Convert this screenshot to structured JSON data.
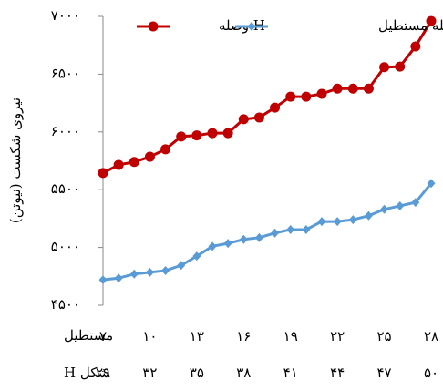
{
  "chart_data": {
    "type": "line",
    "ylabel": "نیروی شکست (نیوتن)",
    "x": [
      7,
      8,
      9,
      10,
      11,
      12,
      13,
      14,
      15,
      16,
      17,
      18,
      19,
      20,
      21,
      22,
      23,
      24,
      25,
      26,
      27,
      28
    ],
    "series": [
      {
        "name": "H وصله",
        "color": "#c00000",
        "marker": "circle",
        "values": [
          5645,
          5715,
          5740,
          5785,
          5850,
          5960,
          5970,
          5990,
          5990,
          6110,
          6125,
          6210,
          6305,
          6305,
          6330,
          6375,
          6375,
          6375,
          6560,
          6565,
          6740,
          6960
        ]
      },
      {
        "name": "وصله مستطیل",
        "color": "#5b9bd5",
        "marker": "diamond",
        "values": [
          4720,
          4735,
          4770,
          4785,
          4800,
          4845,
          4925,
          5010,
          5035,
          5070,
          5085,
          5125,
          5155,
          5155,
          5225,
          5225,
          5240,
          5275,
          5330,
          5360,
          5390,
          5555
        ]
      }
    ],
    "xlim": [
      7,
      28
    ],
    "xticks": [
      {
        "value": 7,
        "label": "۷"
      },
      {
        "value": 10,
        "label": "۱۰"
      },
      {
        "value": 13,
        "label": "۱۳"
      },
      {
        "value": 16,
        "label": "۱۶"
      },
      {
        "value": 19,
        "label": "۱۹"
      },
      {
        "value": 22,
        "label": "۲۲"
      },
      {
        "value": 25,
        "label": "۲۵"
      },
      {
        "value": 28,
        "label": "۲۸"
      }
    ],
    "xlabel": "مستطیل",
    "x2lim": [
      29,
      50
    ],
    "x2ticks": [
      {
        "value": 29,
        "label": "۲۹"
      },
      {
        "value": 32,
        "label": "۳۲"
      },
      {
        "value": 35,
        "label": "۳۵"
      },
      {
        "value": 38,
        "label": "۳۸"
      },
      {
        "value": 41,
        "label": "۴۱"
      },
      {
        "value": 44,
        "label": "۴۴"
      },
      {
        "value": 47,
        "label": "۴۷"
      },
      {
        "value": 50,
        "label": "۵۰"
      }
    ],
    "x2label": "شکل H",
    "ylim": [
      4500,
      7000
    ],
    "yticks": [
      {
        "value": 4500,
        "label": "۴۵۰۰"
      },
      {
        "value": 5000,
        "label": "۵۰۰۰"
      },
      {
        "value": 5500,
        "label": "۵۵۰۰"
      },
      {
        "value": 6000,
        "label": "۶۰۰۰"
      },
      {
        "value": 6500,
        "label": "۶۵۰۰"
      },
      {
        "value": 7000,
        "label": "۷۰۰۰"
      }
    ],
    "legend": "top"
  }
}
